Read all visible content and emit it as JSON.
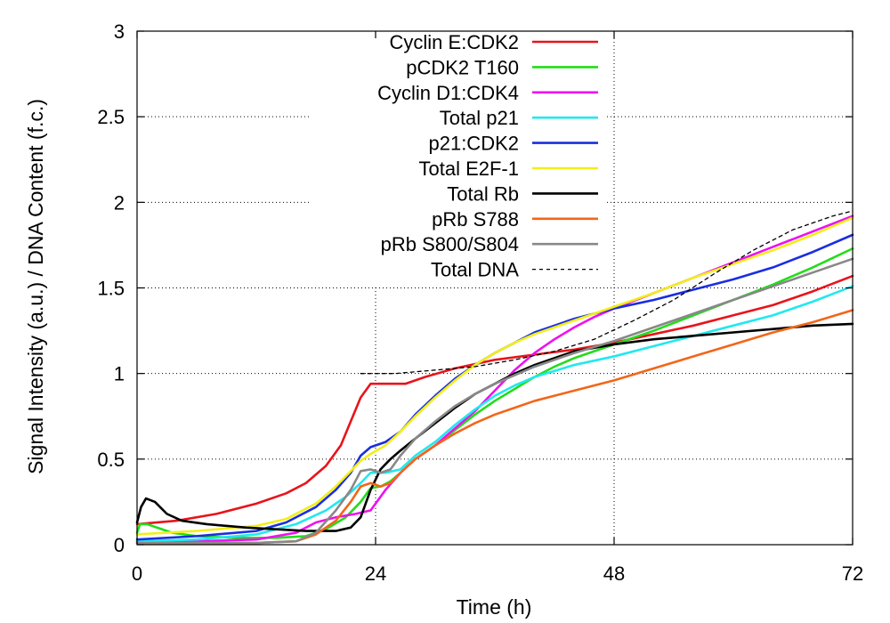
{
  "chart_data": {
    "type": "line",
    "xlabel": "Time (h)",
    "ylabel": "Signal Intensity (a.u.) / DNA Content (f.c.)",
    "xlim": [
      0,
      72
    ],
    "ylim": [
      0,
      3
    ],
    "x_ticks": [
      {
        "value": 0,
        "label": "0"
      },
      {
        "value": 24,
        "label": "24"
      },
      {
        "value": 48,
        "label": "48"
      },
      {
        "value": 72,
        "label": "72"
      }
    ],
    "y_ticks": [
      {
        "value": 0,
        "label": "0"
      },
      {
        "value": 0.5,
        "label": "0.5"
      },
      {
        "value": 1,
        "label": "1"
      },
      {
        "value": 1.5,
        "label": "1.5"
      },
      {
        "value": 2,
        "label": "2"
      },
      {
        "value": 2.5,
        "label": "2.5"
      },
      {
        "value": 3,
        "label": "3"
      }
    ],
    "grid": "dotted at x and y ticks",
    "legend_position": "top-center",
    "series": [
      {
        "name": "Cyclin E:CDK2",
        "color": "#e8141b",
        "points": [
          [
            0,
            0.12
          ],
          [
            4,
            0.14
          ],
          [
            8,
            0.18
          ],
          [
            12,
            0.24
          ],
          [
            15,
            0.3
          ],
          [
            17,
            0.36
          ],
          [
            19,
            0.46
          ],
          [
            20.5,
            0.58
          ],
          [
            21.5,
            0.72
          ],
          [
            22.5,
            0.86
          ],
          [
            23.5,
            0.94
          ],
          [
            25,
            0.94
          ],
          [
            27,
            0.94
          ],
          [
            29,
            0.98
          ],
          [
            32,
            1.03
          ],
          [
            36,
            1.08
          ],
          [
            40,
            1.11
          ],
          [
            44,
            1.14
          ],
          [
            48,
            1.18
          ],
          [
            52,
            1.23
          ],
          [
            56,
            1.28
          ],
          [
            60,
            1.34
          ],
          [
            64,
            1.4
          ],
          [
            68,
            1.48
          ],
          [
            72,
            1.57
          ]
        ]
      },
      {
        "name": "pCDK2 T160",
        "color": "#22dd1a",
        "points": [
          [
            0,
            0.07
          ],
          [
            0.3,
            0.12
          ],
          [
            1,
            0.12
          ],
          [
            2,
            0.1
          ],
          [
            3.5,
            0.07
          ],
          [
            6,
            0.05
          ],
          [
            10,
            0.04
          ],
          [
            14,
            0.04
          ],
          [
            17,
            0.05
          ],
          [
            19,
            0.09
          ],
          [
            21,
            0.16
          ],
          [
            22.5,
            0.25
          ],
          [
            23.5,
            0.33
          ],
          [
            24.5,
            0.34
          ],
          [
            25.5,
            0.37
          ],
          [
            26.5,
            0.42
          ],
          [
            28,
            0.5
          ],
          [
            30,
            0.58
          ],
          [
            32,
            0.67
          ],
          [
            34,
            0.76
          ],
          [
            36,
            0.84
          ],
          [
            38,
            0.91
          ],
          [
            40,
            0.98
          ],
          [
            42,
            1.04
          ],
          [
            44,
            1.09
          ],
          [
            46,
            1.13
          ],
          [
            48,
            1.17
          ],
          [
            50,
            1.21
          ],
          [
            52,
            1.25
          ],
          [
            56,
            1.34
          ],
          [
            60,
            1.43
          ],
          [
            64,
            1.52
          ],
          [
            68,
            1.62
          ],
          [
            72,
            1.73
          ]
        ]
      },
      {
        "name": "Cyclin D1:CDK4",
        "color": "#ee11ee",
        "points": [
          [
            0,
            0.02
          ],
          [
            6,
            0.02
          ],
          [
            12,
            0.03
          ],
          [
            16,
            0.07
          ],
          [
            18,
            0.13
          ],
          [
            20,
            0.16
          ],
          [
            22,
            0.18
          ],
          [
            23.5,
            0.2
          ],
          [
            25,
            0.32
          ],
          [
            26.5,
            0.42
          ],
          [
            28,
            0.5
          ],
          [
            30,
            0.58
          ],
          [
            32,
            0.68
          ],
          [
            34,
            0.78
          ],
          [
            36,
            0.9
          ],
          [
            38,
            1.02
          ],
          [
            40,
            1.12
          ],
          [
            42,
            1.2
          ],
          [
            44,
            1.27
          ],
          [
            46,
            1.33
          ],
          [
            48,
            1.38
          ],
          [
            52,
            1.47
          ],
          [
            56,
            1.56
          ],
          [
            60,
            1.65
          ],
          [
            64,
            1.74
          ],
          [
            68,
            1.83
          ],
          [
            72,
            1.92
          ]
        ]
      },
      {
        "name": "Total p21",
        "color": "#22e8ee",
        "points": [
          [
            0,
            0.02
          ],
          [
            6,
            0.03
          ],
          [
            12,
            0.06
          ],
          [
            16,
            0.12
          ],
          [
            19,
            0.2
          ],
          [
            21,
            0.28
          ],
          [
            22.5,
            0.36
          ],
          [
            23.5,
            0.42
          ],
          [
            25,
            0.42
          ],
          [
            26.5,
            0.44
          ],
          [
            28,
            0.52
          ],
          [
            30,
            0.6
          ],
          [
            32,
            0.7
          ],
          [
            34,
            0.79
          ],
          [
            36,
            0.87
          ],
          [
            38,
            0.93
          ],
          [
            40,
            0.98
          ],
          [
            44,
            1.05
          ],
          [
            48,
            1.1
          ],
          [
            52,
            1.16
          ],
          [
            56,
            1.22
          ],
          [
            60,
            1.28
          ],
          [
            64,
            1.34
          ],
          [
            68,
            1.42
          ],
          [
            72,
            1.51
          ]
        ]
      },
      {
        "name": "p21:CDK2",
        "color": "#1a2ee0",
        "points": [
          [
            0,
            0.03
          ],
          [
            6,
            0.05
          ],
          [
            12,
            0.08
          ],
          [
            15,
            0.13
          ],
          [
            18,
            0.22
          ],
          [
            20,
            0.32
          ],
          [
            21.5,
            0.42
          ],
          [
            22.5,
            0.52
          ],
          [
            23.5,
            0.57
          ],
          [
            25,
            0.6
          ],
          [
            26.5,
            0.66
          ],
          [
            28,
            0.76
          ],
          [
            30,
            0.87
          ],
          [
            32,
            0.97
          ],
          [
            34,
            1.05
          ],
          [
            36,
            1.12
          ],
          [
            38,
            1.18
          ],
          [
            40,
            1.24
          ],
          [
            42,
            1.28
          ],
          [
            44,
            1.32
          ],
          [
            46,
            1.35
          ],
          [
            48,
            1.38
          ],
          [
            52,
            1.43
          ],
          [
            56,
            1.49
          ],
          [
            60,
            1.55
          ],
          [
            64,
            1.62
          ],
          [
            68,
            1.71
          ],
          [
            72,
            1.81
          ]
        ]
      },
      {
        "name": "Total E2F-1",
        "color": "#f2ee1a",
        "points": [
          [
            0,
            0.06
          ],
          [
            6,
            0.08
          ],
          [
            12,
            0.11
          ],
          [
            15,
            0.15
          ],
          [
            18,
            0.24
          ],
          [
            20,
            0.34
          ],
          [
            21.5,
            0.43
          ],
          [
            22.5,
            0.49
          ],
          [
            23.5,
            0.53
          ],
          [
            25,
            0.58
          ],
          [
            26.5,
            0.66
          ],
          [
            28,
            0.75
          ],
          [
            30,
            0.86
          ],
          [
            32,
            0.96
          ],
          [
            34,
            1.05
          ],
          [
            36,
            1.12
          ],
          [
            38,
            1.18
          ],
          [
            40,
            1.23
          ],
          [
            42,
            1.27
          ],
          [
            44,
            1.31
          ],
          [
            46,
            1.35
          ],
          [
            48,
            1.39
          ],
          [
            52,
            1.47
          ],
          [
            56,
            1.56
          ],
          [
            60,
            1.64
          ],
          [
            64,
            1.72
          ],
          [
            68,
            1.81
          ],
          [
            72,
            1.91
          ]
        ]
      },
      {
        "name": "Total Rb",
        "color": "#000000",
        "points": [
          [
            0,
            0.13
          ],
          [
            0.4,
            0.22
          ],
          [
            0.9,
            0.27
          ],
          [
            1.8,
            0.25
          ],
          [
            3,
            0.18
          ],
          [
            4.5,
            0.14
          ],
          [
            7,
            0.12
          ],
          [
            11,
            0.1
          ],
          [
            14,
            0.09
          ],
          [
            17,
            0.08
          ],
          [
            20,
            0.08
          ],
          [
            21.5,
            0.1
          ],
          [
            22.5,
            0.16
          ],
          [
            23.5,
            0.32
          ],
          [
            24.5,
            0.44
          ],
          [
            25.5,
            0.5
          ],
          [
            26.5,
            0.55
          ],
          [
            28,
            0.62
          ],
          [
            30,
            0.71
          ],
          [
            32,
            0.8
          ],
          [
            34,
            0.88
          ],
          [
            36,
            0.94
          ],
          [
            38,
            1.0
          ],
          [
            40,
            1.05
          ],
          [
            42,
            1.09
          ],
          [
            44,
            1.13
          ],
          [
            46,
            1.15
          ],
          [
            48,
            1.17
          ],
          [
            52,
            1.2
          ],
          [
            56,
            1.22
          ],
          [
            60,
            1.24
          ],
          [
            64,
            1.26
          ],
          [
            68,
            1.28
          ],
          [
            72,
            1.29
          ]
        ]
      },
      {
        "name": "pRb S788",
        "color": "#f2661a",
        "points": [
          [
            0,
            0.01
          ],
          [
            6,
            0.01
          ],
          [
            12,
            0.01
          ],
          [
            16,
            0.02
          ],
          [
            18,
            0.06
          ],
          [
            20,
            0.14
          ],
          [
            21.5,
            0.25
          ],
          [
            22.5,
            0.34
          ],
          [
            23.5,
            0.36
          ],
          [
            24.5,
            0.34
          ],
          [
            25.5,
            0.36
          ],
          [
            26.5,
            0.42
          ],
          [
            28,
            0.5
          ],
          [
            30,
            0.58
          ],
          [
            32,
            0.65
          ],
          [
            34,
            0.71
          ],
          [
            36,
            0.76
          ],
          [
            38,
            0.8
          ],
          [
            40,
            0.84
          ],
          [
            44,
            0.9
          ],
          [
            48,
            0.96
          ],
          [
            52,
            1.03
          ],
          [
            56,
            1.1
          ],
          [
            60,
            1.17
          ],
          [
            64,
            1.24
          ],
          [
            68,
            1.3
          ],
          [
            72,
            1.37
          ]
        ]
      },
      {
        "name": "pRb S800/S804",
        "color": "#888888",
        "points": [
          [
            0,
            0.01
          ],
          [
            6,
            0.01
          ],
          [
            12,
            0.01
          ],
          [
            16,
            0.02
          ],
          [
            18,
            0.07
          ],
          [
            20,
            0.2
          ],
          [
            21.5,
            0.32
          ],
          [
            22.5,
            0.43
          ],
          [
            23.5,
            0.44
          ],
          [
            24.5,
            0.42
          ],
          [
            25.5,
            0.44
          ],
          [
            26.5,
            0.52
          ],
          [
            28,
            0.62
          ],
          [
            30,
            0.72
          ],
          [
            32,
            0.81
          ],
          [
            34,
            0.88
          ],
          [
            36,
            0.94
          ],
          [
            38,
            0.99
          ],
          [
            40,
            1.04
          ],
          [
            44,
            1.12
          ],
          [
            48,
            1.19
          ],
          [
            52,
            1.27
          ],
          [
            56,
            1.35
          ],
          [
            60,
            1.43
          ],
          [
            64,
            1.51
          ],
          [
            68,
            1.59
          ],
          [
            72,
            1.67
          ]
        ]
      },
      {
        "name": "Total DNA",
        "color": "#000000",
        "dashed": true,
        "points": [
          [
            22.5,
            1.0
          ],
          [
            26,
            1.0
          ],
          [
            30,
            1.02
          ],
          [
            34,
            1.04
          ],
          [
            38,
            1.08
          ],
          [
            42,
            1.13
          ],
          [
            46,
            1.2
          ],
          [
            50,
            1.31
          ],
          [
            54,
            1.43
          ],
          [
            58,
            1.58
          ],
          [
            62,
            1.72
          ],
          [
            66,
            1.84
          ],
          [
            70,
            1.92
          ],
          [
            72,
            1.95
          ]
        ]
      }
    ]
  }
}
